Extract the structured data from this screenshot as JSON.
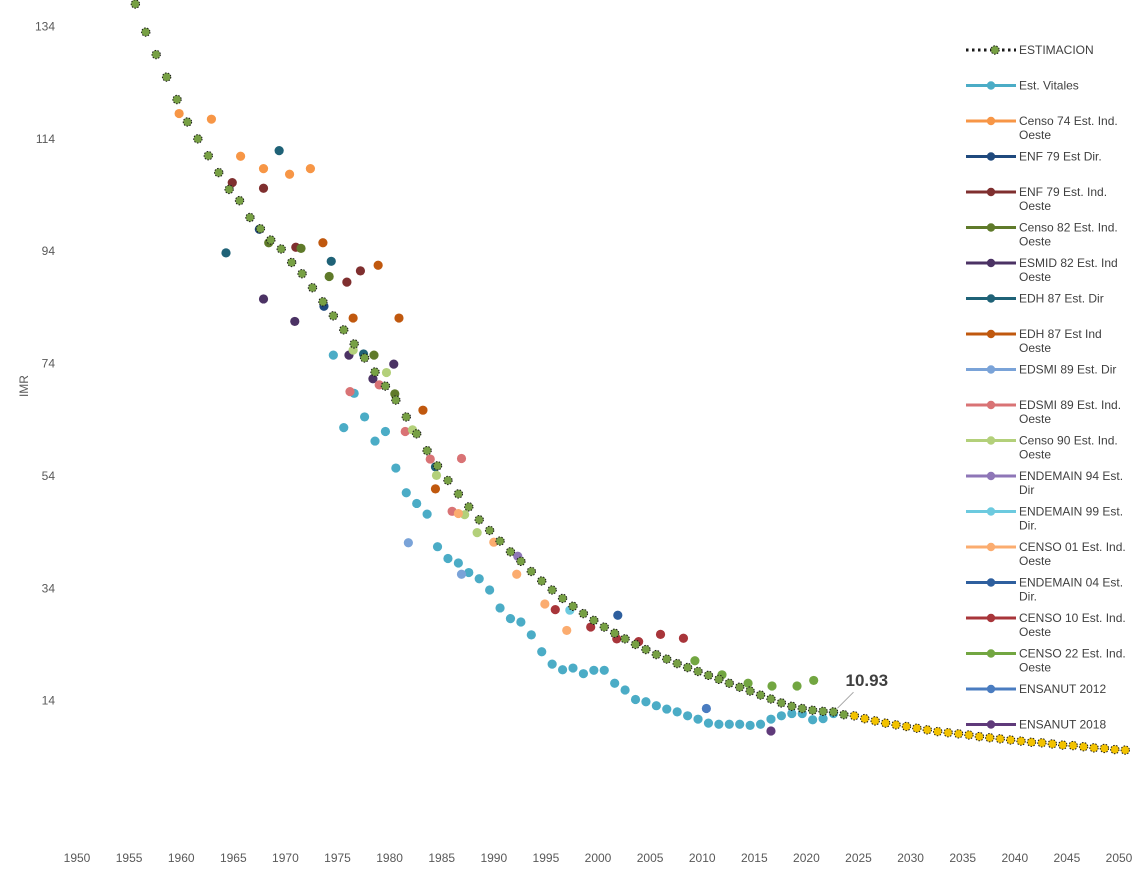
{
  "chart_data": {
    "type": "scatter",
    "xlabel": "",
    "ylabel": "IMR",
    "xlim": [
      1950,
      2050
    ],
    "ylim": [
      -6,
      138
    ],
    "x_ticks": [
      1950,
      1955,
      1960,
      1965,
      1970,
      1975,
      1980,
      1985,
      1990,
      1995,
      2000,
      2005,
      2010,
      2015,
      2020,
      2025,
      2030,
      2035,
      2040,
      2045,
      2050
    ],
    "y_ticks": [
      14,
      34,
      54,
      74,
      94,
      114,
      134
    ],
    "grid": false,
    "legend_position": "right",
    "annotation": {
      "text": "10.93",
      "x": 2022.6,
      "y": 12.3
    },
    "estimacion": {
      "name": "ESTIMACION",
      "color": "#77a044",
      "projection_color": "#f2c200",
      "projection_start": 2024,
      "x": [
        1955.6,
        1956.6,
        1957.6,
        1958.6,
        1959.6,
        1960.6,
        1961.6,
        1962.6,
        1963.6,
        1964.6,
        1965.6,
        1966.6,
        1967.6,
        1968.6,
        1969.6,
        1970.6,
        1971.6,
        1972.6,
        1973.6,
        1974.6,
        1975.6,
        1976.6,
        1977.6,
        1978.6,
        1979.6,
        1980.6,
        1981.6,
        1982.6,
        1983.6,
        1984.6,
        1985.6,
        1986.6,
        1987.6,
        1988.6,
        1989.6,
        1990.6,
        1991.6,
        1992.6,
        1993.6,
        1994.6,
        1995.6,
        1996.6,
        1997.6,
        1998.6,
        1999.6,
        2000.6,
        2001.6,
        2002.6,
        2003.6,
        2004.6,
        2005.6,
        2006.6,
        2007.6,
        2008.6,
        2009.6,
        2010.6,
        2011.6,
        2012.6,
        2013.6,
        2014.6,
        2015.6,
        2016.6,
        2017.6,
        2018.6,
        2019.6,
        2020.6,
        2021.6,
        2022.6,
        2023.6,
        2024.6,
        2025.6,
        2026.6,
        2027.6,
        2028.6,
        2029.6,
        2030.6,
        2031.6,
        2032.6,
        2033.6,
        2034.6,
        2035.6,
        2036.6,
        2037.6,
        2038.6,
        2039.6,
        2040.6,
        2041.6,
        2042.6,
        2043.6,
        2044.6,
        2045.6,
        2046.6,
        2047.6,
        2048.6,
        2049.6,
        2050.6
      ],
      "y": [
        138,
        133,
        129,
        125,
        121,
        117,
        114,
        111,
        108,
        105,
        103,
        100,
        98,
        96,
        94.4,
        92,
        90,
        87.5,
        85,
        82.5,
        80,
        77.5,
        75,
        72.5,
        70,
        67.5,
        64.5,
        61.5,
        58.5,
        55.8,
        53.2,
        50.8,
        48.5,
        46.2,
        44.3,
        42.4,
        40.5,
        38.8,
        37,
        35.3,
        33.7,
        32.2,
        30.8,
        29.5,
        28.3,
        27.1,
        26,
        25,
        24,
        23.1,
        22.2,
        21.4,
        20.6,
        19.9,
        19.2,
        18.5,
        17.8,
        17.1,
        16.4,
        15.7,
        15,
        14.3,
        13.6,
        13,
        12.6,
        12.3,
        12.1,
        12,
        11.5,
        11.3,
        10.8,
        10.4,
        10,
        9.7,
        9.4,
        9.1,
        8.8,
        8.5,
        8.3,
        8.1,
        7.9,
        7.6,
        7.4,
        7.2,
        7,
        6.8,
        6.6,
        6.5,
        6.3,
        6.1,
        6,
        5.8,
        5.6,
        5.5,
        5.3,
        5.2
      ]
    },
    "series": [
      {
        "name": "Est. Vitales",
        "color": "#4bacc6",
        "points": [
          [
            1974.6,
            75.5
          ],
          [
            1975.6,
            62.6
          ],
          [
            1976.6,
            68.7
          ],
          [
            1977.6,
            64.5
          ],
          [
            1978.6,
            60.2
          ],
          [
            1979.6,
            61.9
          ],
          [
            1980.6,
            55.4
          ],
          [
            1981.6,
            51.0
          ],
          [
            1982.6,
            49.1
          ],
          [
            1983.6,
            47.2
          ],
          [
            1984.6,
            41.4
          ],
          [
            1985.6,
            39.3
          ],
          [
            1986.6,
            38.5
          ],
          [
            1987.6,
            36.8
          ],
          [
            1988.6,
            35.7
          ],
          [
            1989.6,
            33.7
          ],
          [
            1990.6,
            30.5
          ],
          [
            1991.6,
            28.6
          ],
          [
            1992.6,
            28.0
          ],
          [
            1993.6,
            25.7
          ],
          [
            1994.6,
            22.7
          ],
          [
            1995.6,
            20.5
          ],
          [
            1996.6,
            19.5
          ],
          [
            1997.6,
            19.8
          ],
          [
            1998.6,
            18.8
          ],
          [
            1999.6,
            19.4
          ],
          [
            2000.6,
            19.4
          ],
          [
            2001.6,
            17.1
          ],
          [
            2002.6,
            15.9
          ],
          [
            2003.6,
            14.2
          ],
          [
            2004.6,
            13.8
          ],
          [
            2005.6,
            13.1
          ],
          [
            2006.6,
            12.5
          ],
          [
            2007.6,
            12.0
          ],
          [
            2008.6,
            11.3
          ],
          [
            2009.6,
            10.7
          ],
          [
            2010.6,
            10.0
          ],
          [
            2011.6,
            9.8
          ],
          [
            2012.6,
            9.8
          ],
          [
            2013.6,
            9.8
          ],
          [
            2014.6,
            9.6
          ],
          [
            2015.6,
            9.8
          ],
          [
            2016.6,
            10.7
          ],
          [
            2017.6,
            11.3
          ],
          [
            2018.6,
            11.7
          ],
          [
            2019.6,
            11.7
          ],
          [
            2020.6,
            10.6
          ],
          [
            2021.6,
            10.8
          ],
          [
            2022.6,
            11.7
          ]
        ]
      },
      {
        "name": "Censo 74 Est. Ind. Oeste",
        "color": "#f79646",
        "points": [
          [
            1959.8,
            118.5
          ],
          [
            1962.9,
            117.5
          ],
          [
            1965.7,
            110.9
          ],
          [
            1967.9,
            108.7
          ],
          [
            1970.4,
            107.7
          ],
          [
            1972.4,
            108.7
          ]
        ]
      },
      {
        "name": "ENF 79 Est Dir.",
        "color": "#1f497d",
        "points": [
          [
            1967.5,
            97.9
          ],
          [
            1973.7,
            84.2
          ]
        ]
      },
      {
        "name": "ENF 79 Est. Ind. Oeste",
        "color": "#7f2f2f",
        "points": [
          [
            1964.9,
            106.2
          ],
          [
            1967.9,
            105.2
          ],
          [
            1971.0,
            94.7
          ],
          [
            1975.9,
            88.5
          ],
          [
            1977.2,
            90.5
          ]
        ]
      },
      {
        "name": "Censo 82 Est. Ind. Oeste",
        "color": "#5f7a2a",
        "points": [
          [
            1968.4,
            95.5
          ],
          [
            1971.5,
            94.5
          ],
          [
            1974.2,
            89.5
          ],
          [
            1978.5,
            75.5
          ],
          [
            1980.5,
            68.6
          ]
        ]
      },
      {
        "name": "ESMID 82 Est. Ind Oeste",
        "color": "#4b3264",
        "points": [
          [
            1967.9,
            85.5
          ],
          [
            1970.9,
            81.5
          ],
          [
            1976.1,
            75.5
          ],
          [
            1978.4,
            71.3
          ],
          [
            1980.4,
            73.9
          ]
        ]
      },
      {
        "name": "EDH 87 Est. Dir",
        "color": "#1f6277",
        "points": [
          [
            1964.3,
            93.7
          ],
          [
            1969.4,
            111.9
          ],
          [
            1974.4,
            92.2
          ],
          [
            1977.5,
            75.7
          ],
          [
            1984.4,
            55.6
          ]
        ]
      },
      {
        "name": "EDH 87 Est Ind Oeste",
        "color": "#c0580e",
        "points": [
          [
            1973.6,
            95.5
          ],
          [
            1976.5,
            82.1
          ],
          [
            1978.9,
            91.5
          ],
          [
            1980.9,
            82.1
          ],
          [
            1983.2,
            65.7
          ],
          [
            1984.4,
            51.7
          ]
        ]
      },
      {
        "name": "EDSMI 89 Est. Dir",
        "color": "#7aa3d8",
        "points": [
          [
            1981.8,
            42.1
          ],
          [
            1986.9,
            36.5
          ]
        ]
      },
      {
        "name": "EDSMI 89 Est. Ind. Oeste",
        "color": "#d97375",
        "points": [
          [
            1976.2,
            69.0
          ],
          [
            1979.0,
            70.2
          ],
          [
            1981.5,
            61.9
          ],
          [
            1983.9,
            57.0
          ],
          [
            1986.0,
            47.7
          ],
          [
            1986.9,
            57.1
          ]
        ]
      },
      {
        "name": "Censo 90 Est. Ind. Oeste",
        "color": "#b3d07a",
        "points": [
          [
            1976.5,
            76.4
          ],
          [
            1979.7,
            72.4
          ],
          [
            1982.2,
            62.2
          ],
          [
            1984.5,
            54.1
          ],
          [
            1987.2,
            47.1
          ],
          [
            1988.4,
            43.9
          ]
        ]
      },
      {
        "name": "ENDEMAIN 94 Est. Dir",
        "color": "#8e76b7",
        "points": [
          [
            1992.3,
            39.7
          ]
        ]
      },
      {
        "name": "ENDEMAIN 99 Est. Dir.",
        "color": "#6ccadf",
        "points": [
          [
            1997.3,
            30.1
          ]
        ]
      },
      {
        "name": "CENSO 01 Est. Ind. Oeste",
        "color": "#fbac6f",
        "points": [
          [
            1986.6,
            47.3
          ],
          [
            1990.0,
            42.2
          ],
          [
            1992.2,
            36.5
          ],
          [
            1994.9,
            31.2
          ],
          [
            1997.0,
            26.5
          ]
        ]
      },
      {
        "name": "ENDEMAIN 04 Est. Dir.",
        "color": "#2e5f9e",
        "points": [
          [
            2001.9,
            29.2
          ]
        ]
      },
      {
        "name": "CENSO 10 Est. Ind. Oeste",
        "color": "#a8353a",
        "points": [
          [
            1995.9,
            30.2
          ],
          [
            1999.3,
            27.1
          ],
          [
            2001.8,
            25.0
          ],
          [
            2003.9,
            24.5
          ],
          [
            2006.0,
            25.8
          ],
          [
            2008.2,
            25.1
          ]
        ]
      },
      {
        "name": "CENSO 22 Est. Ind. Oeste",
        "color": "#72a641",
        "points": [
          [
            2009.3,
            21.1
          ],
          [
            2011.9,
            18.6
          ],
          [
            2014.4,
            17.1
          ],
          [
            2016.7,
            16.6
          ],
          [
            2019.1,
            16.6
          ],
          [
            2020.7,
            17.6
          ]
        ]
      },
      {
        "name": "ENSANUT 2012",
        "color": "#4a7cc0",
        "points": [
          [
            2010.4,
            12.6
          ]
        ]
      },
      {
        "name": "ENSANUT 2018",
        "color": "#5f3a7a",
        "points": [
          [
            2016.6,
            8.6
          ]
        ]
      }
    ]
  }
}
